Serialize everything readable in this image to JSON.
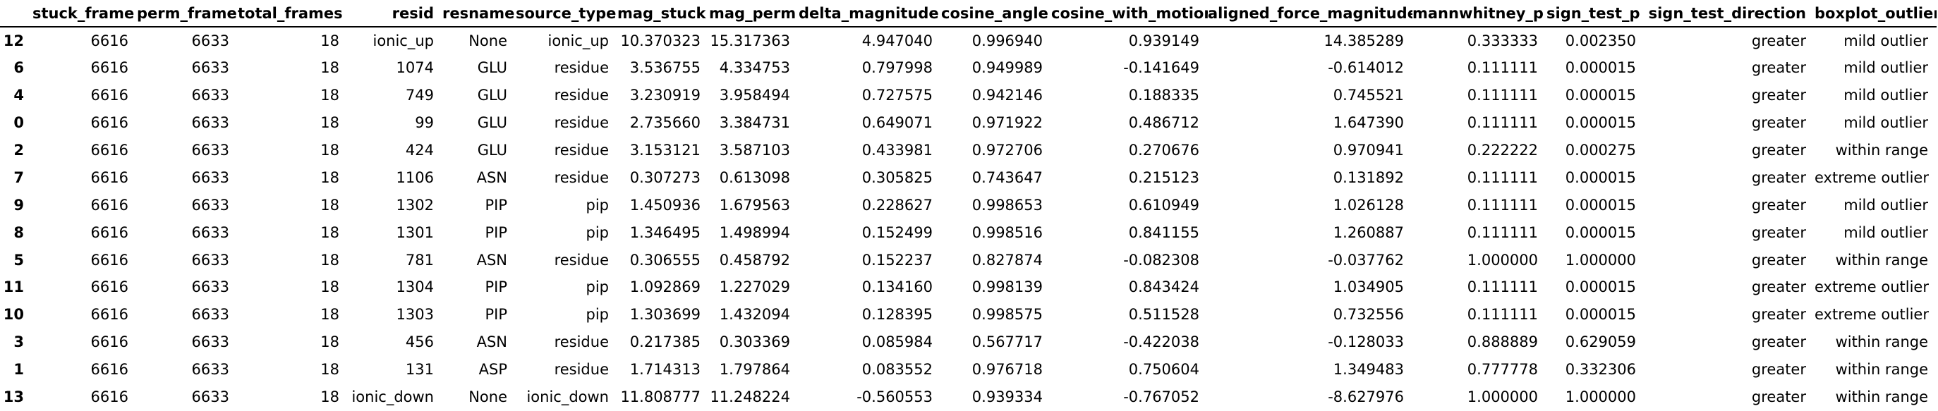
{
  "table": {
    "columns": [
      "",
      "stuck_frame",
      "perm_frame",
      "total_frames",
      "resid",
      "resname",
      "source_type",
      "mag_stuck",
      "mag_perm",
      "delta_magnitude",
      "cosine_angle",
      "cosine_with_motion",
      "aligned_force_magnitude",
      "mannwhitney_p",
      "sign_test_p",
      "sign_test_direction",
      "boxplot_outlier"
    ],
    "rows": [
      [
        "12",
        "6616",
        "6633",
        "18",
        "ionic_up",
        "None",
        "ionic_up",
        "10.370323",
        "15.317363",
        "4.947040",
        "0.996940",
        "0.939149",
        "14.385289",
        "0.333333",
        "0.002350",
        "greater",
        "mild outlier"
      ],
      [
        "6",
        "6616",
        "6633",
        "18",
        "1074",
        "GLU",
        "residue",
        "3.536755",
        "4.334753",
        "0.797998",
        "0.949989",
        "-0.141649",
        "-0.614012",
        "0.111111",
        "0.000015",
        "greater",
        "mild outlier"
      ],
      [
        "4",
        "6616",
        "6633",
        "18",
        "749",
        "GLU",
        "residue",
        "3.230919",
        "3.958494",
        "0.727575",
        "0.942146",
        "0.188335",
        "0.745521",
        "0.111111",
        "0.000015",
        "greater",
        "mild outlier"
      ],
      [
        "0",
        "6616",
        "6633",
        "18",
        "99",
        "GLU",
        "residue",
        "2.735660",
        "3.384731",
        "0.649071",
        "0.971922",
        "0.486712",
        "1.647390",
        "0.111111",
        "0.000015",
        "greater",
        "mild outlier"
      ],
      [
        "2",
        "6616",
        "6633",
        "18",
        "424",
        "GLU",
        "residue",
        "3.153121",
        "3.587103",
        "0.433981",
        "0.972706",
        "0.270676",
        "0.970941",
        "0.222222",
        "0.000275",
        "greater",
        "within range"
      ],
      [
        "7",
        "6616",
        "6633",
        "18",
        "1106",
        "ASN",
        "residue",
        "0.307273",
        "0.613098",
        "0.305825",
        "0.743647",
        "0.215123",
        "0.131892",
        "0.111111",
        "0.000015",
        "greater",
        "extreme outlier"
      ],
      [
        "9",
        "6616",
        "6633",
        "18",
        "1302",
        "PIP",
        "pip",
        "1.450936",
        "1.679563",
        "0.228627",
        "0.998653",
        "0.610949",
        "1.026128",
        "0.111111",
        "0.000015",
        "greater",
        "mild outlier"
      ],
      [
        "8",
        "6616",
        "6633",
        "18",
        "1301",
        "PIP",
        "pip",
        "1.346495",
        "1.498994",
        "0.152499",
        "0.998516",
        "0.841155",
        "1.260887",
        "0.111111",
        "0.000015",
        "greater",
        "mild outlier"
      ],
      [
        "5",
        "6616",
        "6633",
        "18",
        "781",
        "ASN",
        "residue",
        "0.306555",
        "0.458792",
        "0.152237",
        "0.827874",
        "-0.082308",
        "-0.037762",
        "1.000000",
        "1.000000",
        "greater",
        "within range"
      ],
      [
        "11",
        "6616",
        "6633",
        "18",
        "1304",
        "PIP",
        "pip",
        "1.092869",
        "1.227029",
        "0.134160",
        "0.998139",
        "0.843424",
        "1.034905",
        "0.111111",
        "0.000015",
        "greater",
        "extreme outlier"
      ],
      [
        "10",
        "6616",
        "6633",
        "18",
        "1303",
        "PIP",
        "pip",
        "1.303699",
        "1.432094",
        "0.128395",
        "0.998575",
        "0.511528",
        "0.732556",
        "0.111111",
        "0.000015",
        "greater",
        "extreme outlier"
      ],
      [
        "3",
        "6616",
        "6633",
        "18",
        "456",
        "ASN",
        "residue",
        "0.217385",
        "0.303369",
        "0.085984",
        "0.567717",
        "-0.422038",
        "-0.128033",
        "0.888889",
        "0.629059",
        "greater",
        "within range"
      ],
      [
        "1",
        "6616",
        "6633",
        "18",
        "131",
        "ASP",
        "residue",
        "1.714313",
        "1.797864",
        "0.083552",
        "0.976718",
        "0.750604",
        "1.349483",
        "0.777778",
        "0.332306",
        "greater",
        "within range"
      ],
      [
        "13",
        "6616",
        "6633",
        "18",
        "ionic_down",
        "None",
        "ionic_down",
        "11.808777",
        "11.248224",
        "-0.560553",
        "0.939334",
        "-0.767052",
        "-8.627976",
        "1.000000",
        "1.000000",
        "greater",
        "within range"
      ]
    ]
  }
}
